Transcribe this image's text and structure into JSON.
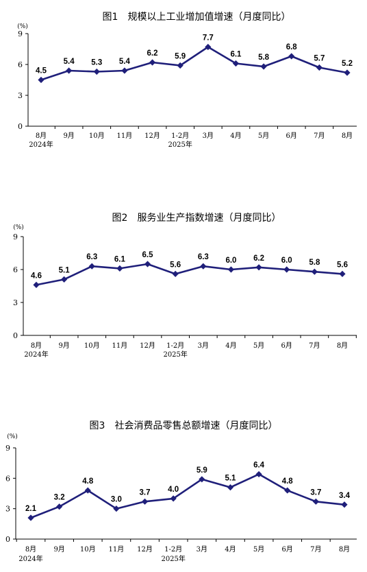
{
  "series_color": "#1f1f7a",
  "chart_data": [
    {
      "type": "line",
      "title": "图1　规模以上工业增加值增速（月度同比）",
      "ylabel": "(%)",
      "categories": [
        "8月",
        "9月",
        "10月",
        "11月",
        "12月",
        "1-2月",
        "3月",
        "4月",
        "5月",
        "6月",
        "7月",
        "8月"
      ],
      "year_labels": [
        "2024年",
        "",
        "",
        "",
        "",
        "2025年",
        "",
        "",
        "",
        "",
        "",
        ""
      ],
      "values": [
        4.5,
        5.4,
        5.3,
        5.4,
        6.2,
        5.9,
        7.7,
        6.1,
        5.8,
        6.8,
        5.7,
        5.2
      ],
      "value_labels": [
        "4.5",
        "5.4",
        "5.3",
        "5.4",
        "6.2",
        "5.9",
        "7.7",
        "6.1",
        "5.8",
        "6.8",
        "5.7",
        "5.2"
      ],
      "yticks": [
        "0",
        "3",
        "6",
        "9"
      ],
      "ylim": [
        0,
        9
      ],
      "grid": false,
      "legend": "none"
    },
    {
      "type": "line",
      "title": "图2　服务业生产指数增速（月度同比）",
      "ylabel": "(%)",
      "categories": [
        "8月",
        "9月",
        "10月",
        "11月",
        "12月",
        "1-2月",
        "3月",
        "4月",
        "5月",
        "6月",
        "7月",
        "8月"
      ],
      "year_labels": [
        "2024年",
        "",
        "",
        "",
        "",
        "2025年",
        "",
        "",
        "",
        "",
        "",
        ""
      ],
      "values": [
        4.6,
        5.1,
        6.3,
        6.1,
        6.5,
        5.6,
        6.3,
        6.0,
        6.2,
        6.0,
        5.8,
        5.6
      ],
      "value_labels": [
        "4.6",
        "5.1",
        "6.3",
        "6.1",
        "6.5",
        "5.6",
        "6.3",
        "6.0",
        "6.2",
        "6.0",
        "5.8",
        "5.6"
      ],
      "yticks": [
        "0",
        "3",
        "6",
        "9"
      ],
      "ylim": [
        0,
        9
      ],
      "grid": false,
      "legend": "none"
    },
    {
      "type": "line",
      "title": "图3　社会消费品零售总额增速（月度同比）",
      "ylabel": "(%)",
      "categories": [
        "8月",
        "9月",
        "10月",
        "11月",
        "12月",
        "1-2月",
        "3月",
        "4月",
        "5月",
        "6月",
        "7月",
        "8月"
      ],
      "year_labels": [
        "2024年",
        "",
        "",
        "",
        "",
        "2025年",
        "",
        "",
        "",
        "",
        "",
        ""
      ],
      "values": [
        2.1,
        3.2,
        4.8,
        3.0,
        3.7,
        4.0,
        5.9,
        5.1,
        6.4,
        4.8,
        3.7,
        3.4
      ],
      "value_labels": [
        "2.1",
        "3.2",
        "4.8",
        "3.0",
        "3.7",
        "4.0",
        "5.9",
        "5.1",
        "6.4",
        "4.8",
        "3.7",
        "3.4"
      ],
      "yticks": [
        "0",
        "3",
        "6",
        "9"
      ],
      "ylim": [
        0,
        9
      ],
      "grid": false,
      "legend": "none"
    }
  ]
}
